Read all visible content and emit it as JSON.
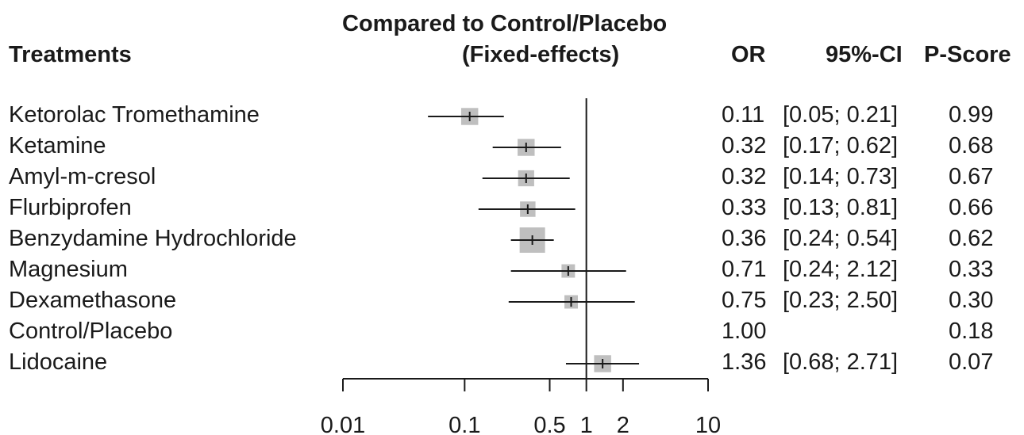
{
  "chart_data": {
    "type": "forest",
    "headers": {
      "treatments": "Treatments",
      "comparison_line1": "Compared to Control/Placebo",
      "comparison_line2": "(Fixed-effects)",
      "or": "OR",
      "ci": "95%-CI",
      "pscore": "P-Score"
    },
    "x_scale": "log",
    "x_ticks": [
      0.01,
      0.1,
      0.5,
      1,
      2,
      10
    ],
    "x_tick_labels": [
      "0.01",
      "0.1",
      "0.5",
      "1",
      "2",
      "10"
    ],
    "xlim": [
      0.01,
      10
    ],
    "reference_line": 1,
    "rows": [
      {
        "name": "Ketorolac Tromethamine",
        "or": 0.11,
        "lower": 0.05,
        "upper": 0.21,
        "or_text": "0.11",
        "ci_text": "[0.05; 0.21]",
        "pscore_text": "0.99",
        "weight": 0.45
      },
      {
        "name": "Ketamine",
        "or": 0.32,
        "lower": 0.17,
        "upper": 0.62,
        "or_text": "0.32",
        "ci_text": "[0.17; 0.62]",
        "pscore_text": "0.68",
        "weight": 0.45
      },
      {
        "name": "Amyl-m-cresol",
        "or": 0.32,
        "lower": 0.14,
        "upper": 0.73,
        "or_text": "0.32",
        "ci_text": "[0.14; 0.73]",
        "pscore_text": "0.67",
        "weight": 0.4
      },
      {
        "name": "Flurbiprofen",
        "or": 0.33,
        "lower": 0.13,
        "upper": 0.81,
        "or_text": "0.33",
        "ci_text": "[0.13; 0.81]",
        "pscore_text": "0.66",
        "weight": 0.37
      },
      {
        "name": "Benzydamine Hydrochloride",
        "or": 0.36,
        "lower": 0.24,
        "upper": 0.54,
        "or_text": "0.36",
        "ci_text": "[0.24; 0.54]",
        "pscore_text": "0.62",
        "weight": 1.0
      },
      {
        "name": "Magnesium",
        "or": 0.71,
        "lower": 0.24,
        "upper": 2.12,
        "or_text": "0.71",
        "ci_text": "[0.24; 2.12]",
        "pscore_text": "0.33",
        "weight": 0.28
      },
      {
        "name": "Dexamethasone",
        "or": 0.75,
        "lower": 0.23,
        "upper": 2.5,
        "or_text": "0.75",
        "ci_text": "[0.23; 2.50]",
        "pscore_text": "0.30",
        "weight": 0.28
      },
      {
        "name": "Control/Placebo",
        "or": 1.0,
        "lower": null,
        "upper": null,
        "or_text": "1.00",
        "ci_text": "",
        "pscore_text": "0.18",
        "weight": 0
      },
      {
        "name": "Lidocaine",
        "or": 1.36,
        "lower": 0.68,
        "upper": 2.71,
        "or_text": "1.36",
        "ci_text": "[0.68; 2.71]",
        "pscore_text": "0.07",
        "weight": 0.45
      }
    ],
    "colors": {
      "box": "#bfbfbf",
      "line": "#1a1a1a"
    }
  }
}
